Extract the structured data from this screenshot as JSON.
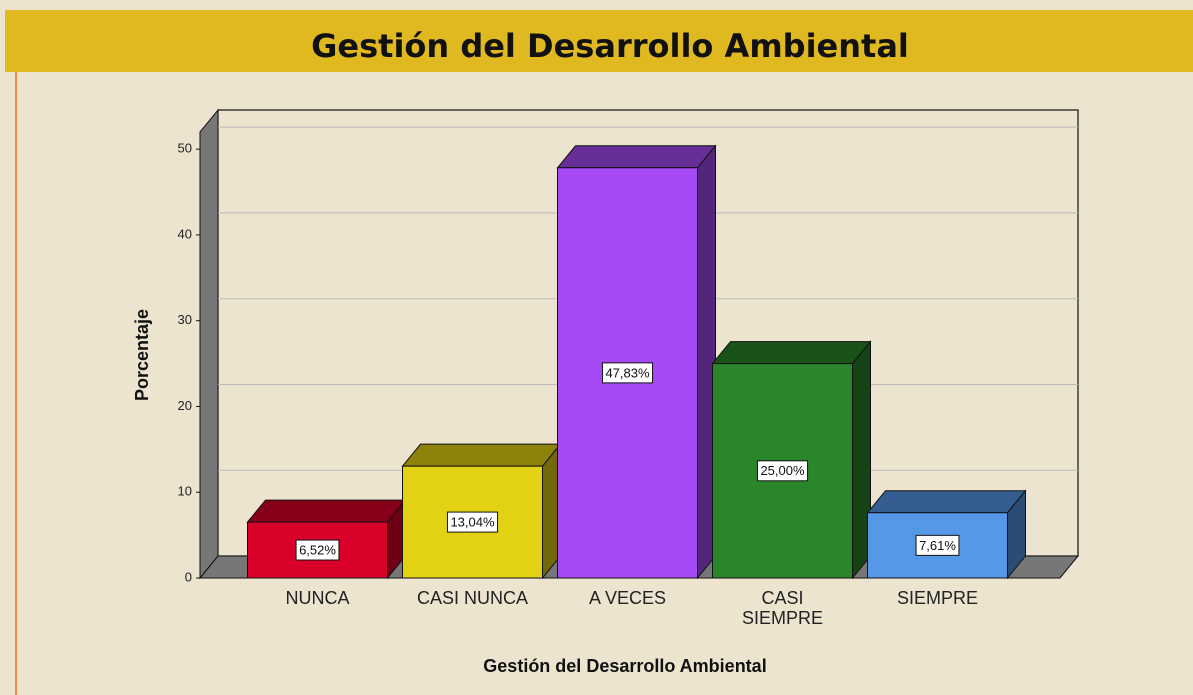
{
  "chart_data": {
    "type": "bar3d",
    "title": "Gestión del Desarrollo Ambiental",
    "x_label": "Gestión del Desarrollo Ambiental",
    "y_label": "Porcentaje",
    "categories": [
      "NUNCA",
      "CASI NUNCA",
      "A VECES",
      "CASI SIEMPRE",
      "SIEMPRE"
    ],
    "values": [
      6.52,
      13.04,
      47.83,
      25.0,
      7.61
    ],
    "value_labels": [
      "6,52%",
      "13,04%",
      "47,83%",
      "25,00%",
      "7,61%"
    ],
    "colors": [
      "#d9002a",
      "#e3d214",
      "#a64af5",
      "#2a862a",
      "#5598e8"
    ],
    "ylim": [
      0,
      52
    ],
    "yticks": [
      0,
      10,
      20,
      30,
      40,
      50
    ],
    "grid": true
  }
}
